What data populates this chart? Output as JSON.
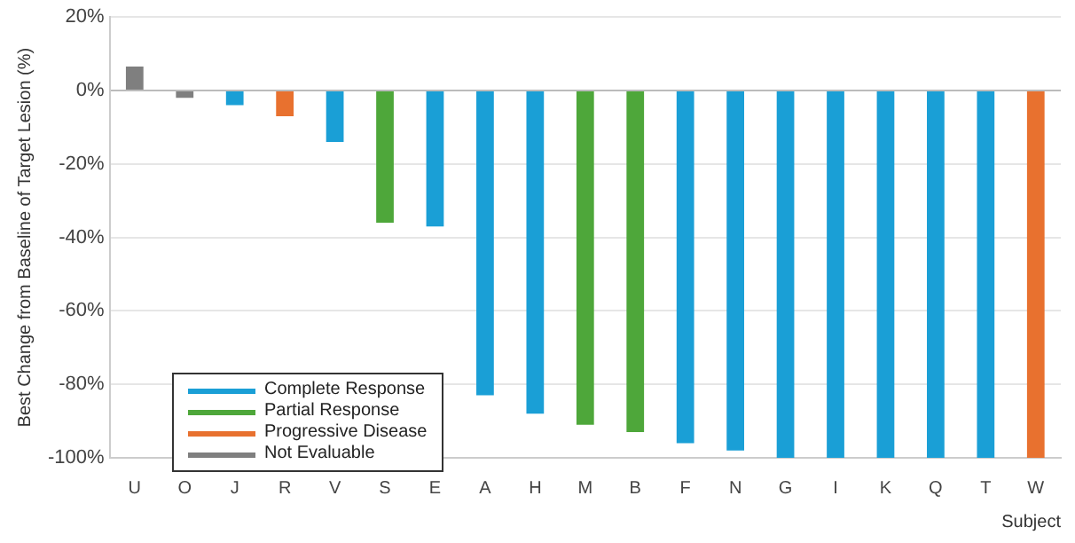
{
  "chart_data": {
    "type": "bar",
    "xlabel": "Subject",
    "ylabel": "Best Change from Baseline of Target Lesion (%)",
    "categories": [
      "U",
      "O",
      "J",
      "R",
      "V",
      "S",
      "E",
      "A",
      "H",
      "M",
      "B",
      "F",
      "N",
      "G",
      "I",
      "K",
      "Q",
      "T",
      "W"
    ],
    "series": [
      {
        "name": "Complete Response",
        "color": "#1a9fd6",
        "values": [
          null,
          null,
          -4,
          null,
          -14,
          null,
          -37,
          -83,
          -88,
          null,
          null,
          -96,
          -98,
          -100,
          -100,
          -100,
          -100,
          -100,
          null
        ]
      },
      {
        "name": "Partial Response",
        "color": "#4ea73a",
        "values": [
          null,
          null,
          null,
          null,
          null,
          -36,
          null,
          null,
          null,
          -91,
          -93,
          null,
          null,
          null,
          null,
          null,
          null,
          null,
          null
        ]
      },
      {
        "name": "Progressive Disease",
        "color": "#e8712f",
        "values": [
          null,
          null,
          null,
          -7,
          null,
          null,
          null,
          null,
          null,
          null,
          null,
          null,
          null,
          null,
          null,
          null,
          null,
          null,
          -100
        ]
      },
      {
        "name": "Not Evaluable",
        "color": "#7f7f7f",
        "values": [
          6.5,
          -2,
          null,
          null,
          null,
          null,
          null,
          null,
          null,
          null,
          null,
          null,
          null,
          null,
          null,
          null,
          null,
          null,
          null
        ]
      }
    ],
    "ylim": [
      -100,
      20
    ],
    "yticks": [
      {
        "value": -100,
        "label": "-100%"
      },
      {
        "value": -80,
        "label": "-80%"
      },
      {
        "value": -60,
        "label": "-60%"
      },
      {
        "value": -40,
        "label": "-40%"
      },
      {
        "value": -20,
        "label": "-20%"
      },
      {
        "value": 0,
        "label": "0%"
      },
      {
        "value": 20,
        "label": "20%"
      }
    ],
    "grid": "y",
    "legend": "bottom left"
  }
}
